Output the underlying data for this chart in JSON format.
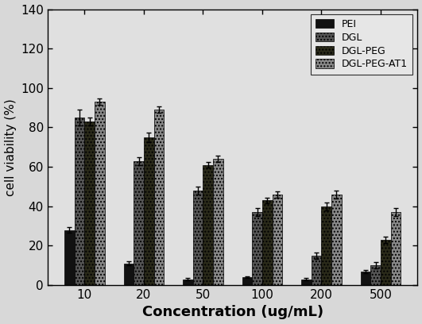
{
  "categories": [
    "10",
    "20",
    "50",
    "100",
    "200",
    "500"
  ],
  "series": [
    {
      "name": "PEI",
      "values": [
        28,
        11,
        3,
        4,
        3,
        7
      ],
      "errors": [
        1.5,
        1.0,
        0.5,
        0.5,
        0.5,
        0.8
      ],
      "color": "#111111",
      "hatch": ""
    },
    {
      "name": "DGL",
      "values": [
        85,
        63,
        48,
        37,
        15,
        10
      ],
      "errors": [
        4.0,
        2.0,
        2.0,
        2.0,
        1.5,
        1.5
      ],
      "color": "#555555",
      "hatch": "...."
    },
    {
      "name": "DGL-PEG",
      "values": [
        83,
        75,
        61,
        43,
        40,
        23
      ],
      "errors": [
        2.0,
        2.5,
        1.5,
        1.5,
        2.0,
        1.5
      ],
      "color": "#2a2a1a",
      "hatch": "...."
    },
    {
      "name": "DGL-PEG-AT1",
      "values": [
        93,
        89,
        64,
        46,
        46,
        37
      ],
      "errors": [
        1.5,
        1.5,
        1.5,
        1.5,
        2.0,
        2.0
      ],
      "color": "#888888",
      "hatch": "...."
    }
  ],
  "ylabel": "cell viability (%)",
  "xlabel": "Concentration (ug/mL)",
  "ylim": [
    0,
    140
  ],
  "yticks": [
    0,
    20,
    40,
    60,
    80,
    100,
    120,
    140
  ],
  "bar_width": 0.17,
  "figsize": [
    5.31,
    4.08
  ],
  "dpi": 100,
  "bg_color": "#f0f0f0",
  "axes_bg": "#e8e8e8"
}
